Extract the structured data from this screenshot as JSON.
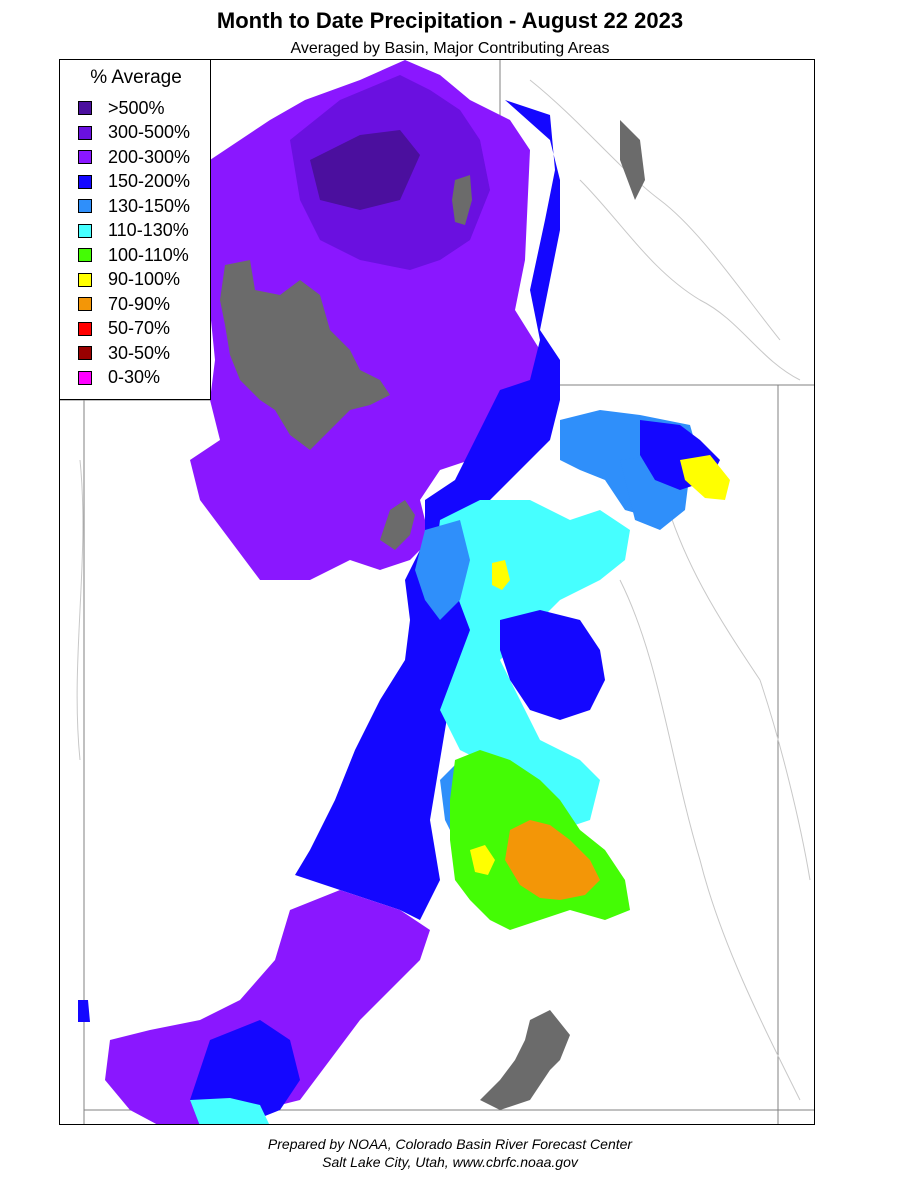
{
  "title": "Month to Date Precipitation - August 22 2023",
  "subtitle": "Averaged by Basin, Major Contributing Areas",
  "legend": {
    "title": "% Average",
    "items": [
      {
        "label": ">500%",
        "color": "#4b0f9e"
      },
      {
        "label": "300-500%",
        "color": "#6a10e0"
      },
      {
        "label": "200-300%",
        "color": "#8a17ff"
      },
      {
        "label": "150-200%",
        "color": "#1407ff"
      },
      {
        "label": "130-150%",
        "color": "#2f8ffa"
      },
      {
        "label": "110-130%",
        "color": "#46ffff"
      },
      {
        "label": "100-110%",
        "color": "#44fc05"
      },
      {
        "label": "90-100%",
        "color": "#ffff00"
      },
      {
        "label": "70-90%",
        "color": "#f39607"
      },
      {
        "label": "50-70%",
        "color": "#ff0000"
      },
      {
        "label": "30-50%",
        "color": "#990000"
      },
      {
        "label": "0-30%",
        "color": "#ff00ff"
      }
    ]
  },
  "footer": {
    "line1": "Prepared by NOAA, Colorado Basin River Forecast Center",
    "line2": "Salt Lake City, Utah, www.cbrfc.noaa.gov"
  },
  "colors": {
    "lake": "#6b6b6b",
    "border": "#808080",
    "river": "#c8c8c8"
  }
}
